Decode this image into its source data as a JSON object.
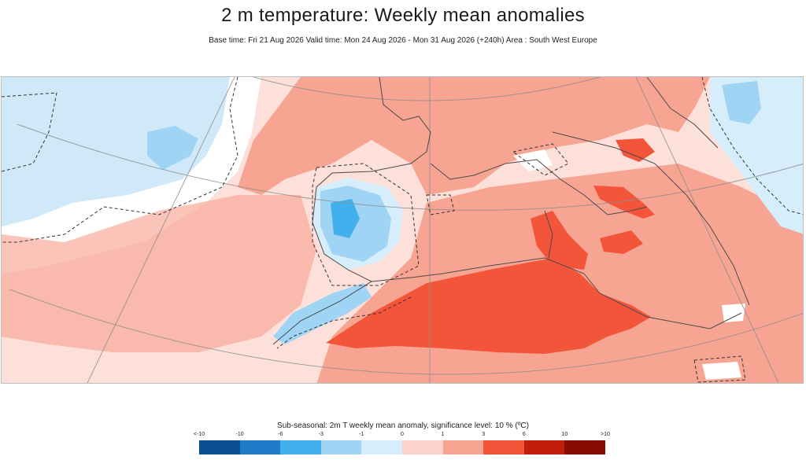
{
  "header": {
    "title": "2 m temperature: Weekly mean anomalies",
    "subtitle": "Base time: Fri 21 Aug 2026 Valid time: Mon 24 Aug 2026 - Mon 31 Aug 2026 (+240h) Area : South West Europe"
  },
  "map": {
    "region": "South West Europe",
    "parameter": "2m T weekly mean anomaly",
    "colors": {
      "ocean_background": "#fde0d9",
      "land_line": "#555555",
      "graticule": "#8c8c8c",
      "significance_contour": "#333333"
    }
  },
  "legend": {
    "title": "Sub-seasonal: 2m T weekly mean anomaly, significance level: 10 % (ºC)",
    "tick_labels": [
      "<-10",
      "-10",
      "-6",
      "-3",
      "-1",
      "0",
      "1",
      "3",
      "6",
      "10",
      ">10"
    ],
    "colors": [
      "#0b2c4a",
      "#0a4f8f",
      "#1f7bc7",
      "#41b0ec",
      "#9fd4f5",
      "#d6eefb",
      "#fcd3cb",
      "#f7a493",
      "#f3553a",
      "#c11d0d",
      "#8a0b04",
      "#4f0502"
    ]
  }
}
